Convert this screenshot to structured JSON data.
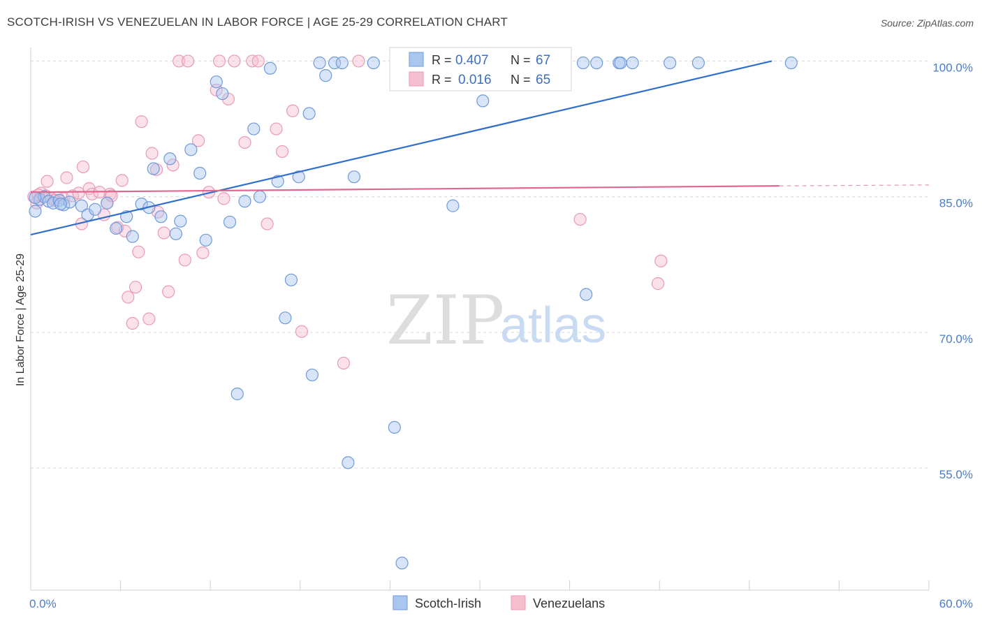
{
  "title": "SCOTCH-IRISH VS VENEZUELAN IN LABOR FORCE | AGE 25-29 CORRELATION CHART",
  "source": "Source: ZipAtlas.com",
  "watermark": {
    "zip": "ZIP",
    "atlas": "atlas"
  },
  "colors": {
    "blue_fill": "#a9c6ef",
    "blue_stroke": "#6f9ad8",
    "blue_line": "#2f6fcb",
    "pink_fill": "#f6bfd0",
    "pink_stroke": "#e99ab4",
    "pink_line": "#e0678f",
    "grid": "#d8d8d8",
    "axis_text": "#4a7cc7"
  },
  "legend": {
    "rows": [
      {
        "r_label": "R =",
        "r_value": "0.407",
        "n_label": "N =",
        "n_value": "67"
      },
      {
        "r_label": "R =",
        "r_value": "0.016",
        "n_label": "N =",
        "n_value": "65"
      }
    ]
  },
  "chart_data": {
    "type": "scatter",
    "title": "SCOTCH-IRISH VS VENEZUELAN IN LABOR FORCE | AGE 25-29 CORRELATION CHART",
    "xlabel": "",
    "ylabel": "In Labor Force | Age 25-29",
    "xlim": [
      0,
      60
    ],
    "ylim": [
      41.5,
      101.5
    ],
    "x_tick_labels": [
      "0.0%",
      "60.0%"
    ],
    "y_ticks": [
      55,
      70,
      85,
      100
    ],
    "y_tick_labels": [
      "55.0%",
      "70.0%",
      "85.0%",
      "100.0%"
    ],
    "legend_position": "top-center",
    "grid": true,
    "series": [
      {
        "name": "Scotch-Irish",
        "color": "#a9c6ef",
        "trend": {
          "x": [
            0,
            49.5
          ],
          "y": [
            80.8,
            100.0
          ]
        },
        "points": [
          [
            0.3,
            83.4
          ],
          [
            0.6,
            84.7
          ],
          [
            0.9,
            85.0
          ],
          [
            1.2,
            84.5
          ],
          [
            1.5,
            84.3
          ],
          [
            1.9,
            84.6
          ],
          [
            2.2,
            84.1
          ],
          [
            2.6,
            84.4
          ],
          [
            3.4,
            84.0
          ],
          [
            3.8,
            83.0
          ],
          [
            4.3,
            83.6
          ],
          [
            5.1,
            84.3
          ],
          [
            5.7,
            81.5
          ],
          [
            6.4,
            82.8
          ],
          [
            6.8,
            80.6
          ],
          [
            7.4,
            84.2
          ],
          [
            7.9,
            83.8
          ],
          [
            8.2,
            88.1
          ],
          [
            8.7,
            82.8
          ],
          [
            9.3,
            89.2
          ],
          [
            9.7,
            80.9
          ],
          [
            10.0,
            82.3
          ],
          [
            10.7,
            90.2
          ],
          [
            11.3,
            87.6
          ],
          [
            11.7,
            80.2
          ],
          [
            12.4,
            97.7
          ],
          [
            12.8,
            96.4
          ],
          [
            13.3,
            82.2
          ],
          [
            13.8,
            63.2
          ],
          [
            14.3,
            84.5
          ],
          [
            14.9,
            92.5
          ],
          [
            15.3,
            85.0
          ],
          [
            16.0,
            99.2
          ],
          [
            16.5,
            86.7
          ],
          [
            17.0,
            71.6
          ],
          [
            17.4,
            75.8
          ],
          [
            17.9,
            87.2
          ],
          [
            18.6,
            94.2
          ],
          [
            18.8,
            65.3
          ],
          [
            19.3,
            99.8
          ],
          [
            19.7,
            98.4
          ],
          [
            20.3,
            99.8
          ],
          [
            20.8,
            99.8
          ],
          [
            21.2,
            55.6
          ],
          [
            21.6,
            87.2
          ],
          [
            22.9,
            99.8
          ],
          [
            24.3,
            59.5
          ],
          [
            24.8,
            44.5
          ],
          [
            26.1,
            99.8
          ],
          [
            27.3,
            99.8
          ],
          [
            28.2,
            84.0
          ],
          [
            29.4,
            99.8
          ],
          [
            30.2,
            95.6
          ],
          [
            31.5,
            99.8
          ],
          [
            33.6,
            99.8
          ],
          [
            34.0,
            99.8
          ],
          [
            36.9,
            99.8
          ],
          [
            37.1,
            74.2
          ],
          [
            37.8,
            99.8
          ],
          [
            39.3,
            99.8
          ],
          [
            39.4,
            99.8
          ],
          [
            40.2,
            99.8
          ],
          [
            42.7,
            99.8
          ],
          [
            44.6,
            99.8
          ],
          [
            50.8,
            99.8
          ],
          [
            0.3,
            84.9
          ],
          [
            2.0,
            84.2
          ]
        ]
      },
      {
        "name": "Venezuelans",
        "color": "#f6bfd0",
        "trend": {
          "x": [
            0,
            50.0
          ],
          "y": [
            85.5,
            86.2
          ]
        },
        "trend_dashed_to": {
          "x": 60,
          "y": 86.3
        },
        "points": [
          [
            0.2,
            85.0
          ],
          [
            0.4,
            84.3
          ],
          [
            0.7,
            85.4
          ],
          [
            1.0,
            85.1
          ],
          [
            1.1,
            86.7
          ],
          [
            1.4,
            84.8
          ],
          [
            1.8,
            84.9
          ],
          [
            2.2,
            84.8
          ],
          [
            2.4,
            87.1
          ],
          [
            2.8,
            85.1
          ],
          [
            3.2,
            85.4
          ],
          [
            3.4,
            82.0
          ],
          [
            3.5,
            88.3
          ],
          [
            3.9,
            85.9
          ],
          [
            4.1,
            85.3
          ],
          [
            4.6,
            85.5
          ],
          [
            4.9,
            83.0
          ],
          [
            5.1,
            84.3
          ],
          [
            5.3,
            85.3
          ],
          [
            5.4,
            85.1
          ],
          [
            5.8,
            81.6
          ],
          [
            6.1,
            86.8
          ],
          [
            6.3,
            81.2
          ],
          [
            6.5,
            73.9
          ],
          [
            6.8,
            71.0
          ],
          [
            7.0,
            75.0
          ],
          [
            7.2,
            78.9
          ],
          [
            7.4,
            93.3
          ],
          [
            7.9,
            71.5
          ],
          [
            8.1,
            89.8
          ],
          [
            8.4,
            88.0
          ],
          [
            8.5,
            83.3
          ],
          [
            8.9,
            81.0
          ],
          [
            9.2,
            74.5
          ],
          [
            9.5,
            88.5
          ],
          [
            9.9,
            100.0
          ],
          [
            10.3,
            78.0
          ],
          [
            10.5,
            100.0
          ],
          [
            11.2,
            91.2
          ],
          [
            11.5,
            78.8
          ],
          [
            11.9,
            85.5
          ],
          [
            12.4,
            96.8
          ],
          [
            12.6,
            100.0
          ],
          [
            12.9,
            84.8
          ],
          [
            13.2,
            95.8
          ],
          [
            13.6,
            100.0
          ],
          [
            14.3,
            91.0
          ],
          [
            14.8,
            100.0
          ],
          [
            15.2,
            100.0
          ],
          [
            15.8,
            82.0
          ],
          [
            16.4,
            92.5
          ],
          [
            16.8,
            90.0
          ],
          [
            17.5,
            94.5
          ],
          [
            18.1,
            70.1
          ],
          [
            20.9,
            66.6
          ],
          [
            21.9,
            100.0
          ],
          [
            25.4,
            100.0
          ],
          [
            27.7,
            100.0
          ],
          [
            30.1,
            100.0
          ],
          [
            31.7,
            100.0
          ],
          [
            36.7,
            82.5
          ],
          [
            41.9,
            75.4
          ],
          [
            42.1,
            77.9
          ],
          [
            0.5,
            85.2
          ],
          [
            1.6,
            84.6
          ]
        ]
      }
    ]
  },
  "bottom_legend": [
    "Scotch-Irish",
    "Venezuelans"
  ]
}
